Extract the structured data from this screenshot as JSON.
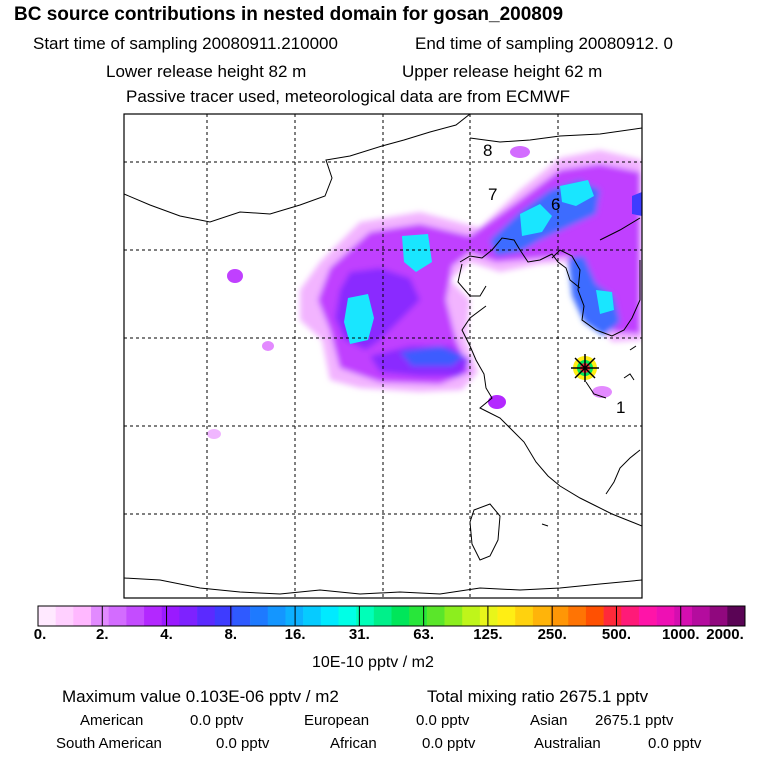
{
  "header": {
    "title": "BC  source contributions in nested domain for gosan_200809",
    "start_label": "Start time of sampling 20080911.210000",
    "end_label": "End time of sampling 20080912.     0",
    "lower_release": "Lower release height   82 m",
    "upper_release": "Upper release height   62 m",
    "info": "Passive tracer used, meteorological data are from ECMWF"
  },
  "map": {
    "region_labels": [
      "8",
      "7",
      "6",
      "1"
    ]
  },
  "colorbar": {
    "colors": [
      "#ffe9ff",
      "#ffd0ff",
      "#ffb8ff",
      "#e28aff",
      "#d36cff",
      "#c44cff",
      "#b328ff",
      "#9a1aff",
      "#7e22ff",
      "#5b2aff",
      "#3e3cff",
      "#2f5aff",
      "#1e7aff",
      "#1496ff",
      "#0db0ff",
      "#06cbff",
      "#00eaff",
      "#00ffe6",
      "#00ffb8",
      "#00f08a",
      "#00e65a",
      "#28e63a",
      "#5ae62a",
      "#8cee1e",
      "#bff51a",
      "#e8f51a",
      "#ffee14",
      "#ffd20e",
      "#ffb40a",
      "#ff9606",
      "#ff7404",
      "#ff5002",
      "#ff2a3a",
      "#ff1a78",
      "#ff14a8",
      "#ee10b4",
      "#d40eb0",
      "#b40c9e",
      "#90087e",
      "#5a0455"
    ],
    "tick_labels": [
      "0.",
      "2.",
      "4.",
      "8.",
      "16.",
      "31.",
      "63.",
      "125.",
      "250.",
      "500.",
      "1000.",
      "2000."
    ],
    "unit": "10E-10 pptv / m2"
  },
  "stats": {
    "max_label": "Maximum value  0.103E-06 pptv / m2",
    "total_label": "Total mixing ratio     2675.1 pptv",
    "american_label": "American",
    "american_value": "0.0 pptv",
    "european_label": "European",
    "european_value": "0.0 pptv",
    "asian_label": "Asian",
    "asian_value": "2675.1 pptv",
    "south_american_label": "South American",
    "south_american_value": "0.0 pptv",
    "african_label": "African",
    "african_value": "0.0 pptv",
    "australian_label": "Australian",
    "australian_value": "0.0 pptv"
  }
}
